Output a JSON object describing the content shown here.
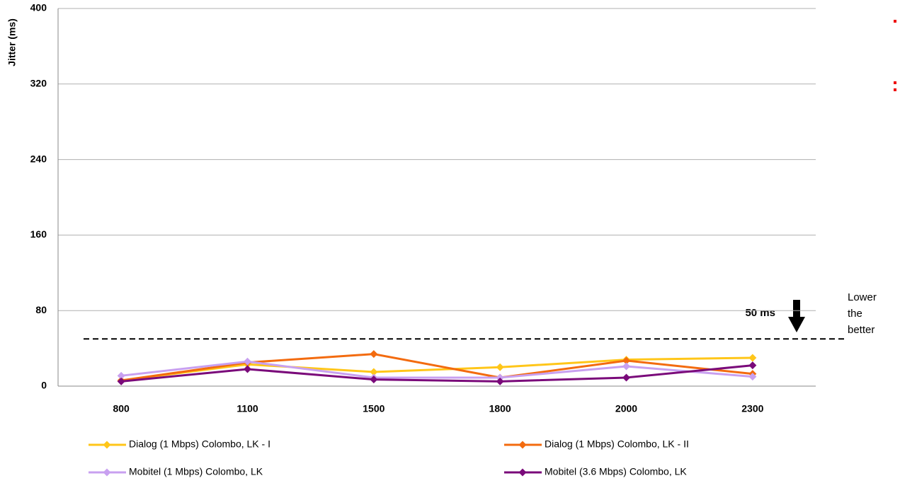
{
  "chart_data": {
    "type": "line",
    "y_label": "Jitter (ms)",
    "categories": [
      "800",
      "1100",
      "1500",
      "1800",
      "2000",
      "2300"
    ],
    "series": [
      {
        "name": "Dialog (1 Mbps) Colombo, LK - I",
        "color": "#ffc619",
        "values": [
          6,
          23,
          15,
          20,
          28,
          30
        ]
      },
      {
        "name": "Dialog (1 Mbps) Colombo, LK - II",
        "color": "#f36b0f",
        "values": [
          6,
          25,
          34,
          9,
          27,
          13
        ]
      },
      {
        "name": "Mobitel (1 Mbps) Colombo, LK",
        "color": "#c8a0f0",
        "values": [
          11,
          26,
          9,
          9,
          21,
          10
        ]
      },
      {
        "name": "Mobitel (3.6 Mbps) Colombo, LK",
        "color": "#7a0a7a",
        "values": [
          5,
          18,
          7,
          5,
          9,
          22
        ]
      }
    ],
    "ylim": [
      0,
      400
    ],
    "yticks": [
      0,
      80,
      160,
      240,
      320,
      400
    ],
    "grid": true,
    "threshold": 50,
    "threshold_label": "50 ms",
    "note": "Lower the better"
  }
}
